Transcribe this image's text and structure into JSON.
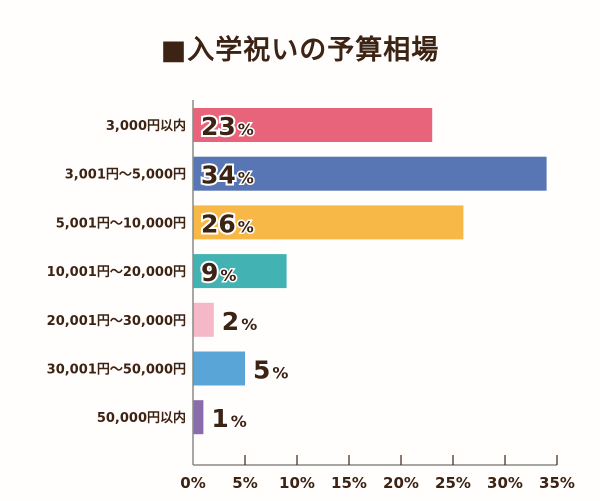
{
  "chart_data": {
    "type": "bar",
    "orientation": "horizontal",
    "title": "■入学祝いの予算相場",
    "categories": [
      "3,000円以内",
      "3,001円～5,000円",
      "5,001円～10,000円",
      "10,001円～20,000円",
      "20,001円～30,000円",
      "30,001円～50,000円",
      "50,000円以内"
    ],
    "values": [
      23,
      34,
      26,
      9,
      2,
      5,
      1
    ],
    "value_suffix": "%",
    "colors": [
      "#e8647a",
      "#5776b3",
      "#f8b847",
      "#42b3b2",
      "#f5b8c9",
      "#5aa5d8",
      "#8a6bab"
    ],
    "xlim": [
      0,
      35
    ],
    "xticks": [
      "0%",
      "5%",
      "10%",
      "15%",
      "20%",
      "25%",
      "30%",
      "35%"
    ],
    "xlabel": "",
    "ylabel": "",
    "grid": false,
    "legend": "none"
  }
}
